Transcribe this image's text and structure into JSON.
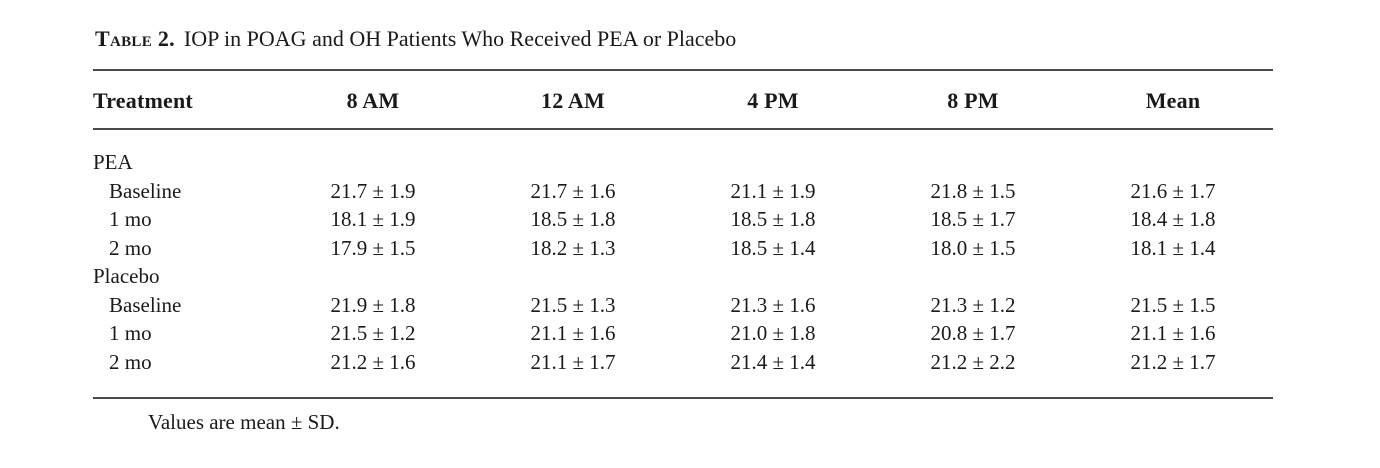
{
  "table": {
    "label": "Table 2.",
    "title": "IOP in POAG and OH Patients Who Received PEA or Placebo",
    "columns": [
      "Treatment",
      "8 AM",
      "12 AM",
      "4 PM",
      "8 PM",
      "Mean"
    ],
    "groups": [
      {
        "name": "PEA",
        "rows": [
          {
            "label": "Baseline",
            "values": [
              "21.7 ± 1.9",
              "21.7 ± 1.6",
              "21.1 ± 1.9",
              "21.8 ± 1.5",
              "21.6 ± 1.7"
            ]
          },
          {
            "label": "1 mo",
            "values": [
              "18.1 ± 1.9",
              "18.5 ± 1.8",
              "18.5 ± 1.8",
              "18.5 ± 1.7",
              "18.4 ± 1.8"
            ]
          },
          {
            "label": "2 mo",
            "values": [
              "17.9 ± 1.5",
              "18.2 ± 1.3",
              "18.5 ± 1.4",
              "18.0 ± 1.5",
              "18.1 ± 1.4"
            ]
          }
        ]
      },
      {
        "name": "Placebo",
        "rows": [
          {
            "label": "Baseline",
            "values": [
              "21.9 ± 1.8",
              "21.5 ± 1.3",
              "21.3 ± 1.6",
              "21.3 ± 1.2",
              "21.5 ± 1.5"
            ]
          },
          {
            "label": "1 mo",
            "values": [
              "21.5 ± 1.2",
              "21.1 ± 1.6",
              "21.0 ± 1.8",
              "20.8 ± 1.7",
              "21.1 ± 1.6"
            ]
          },
          {
            "label": "2 mo",
            "values": [
              "21.2 ± 1.6",
              "21.1 ± 1.7",
              "21.4 ± 1.4",
              "21.2 ± 2.2",
              "21.2 ± 1.7"
            ]
          }
        ]
      }
    ],
    "footnote": "Values are mean ± SD."
  }
}
